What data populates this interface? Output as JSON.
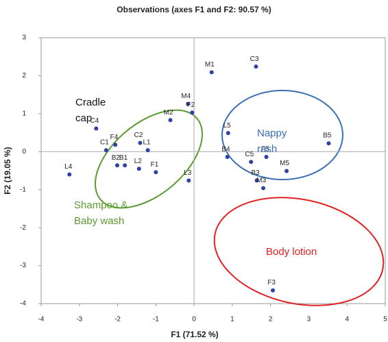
{
  "chart_data": {
    "type": "scatter",
    "title": "Observations (axes F1 and F2: 90.57 %)",
    "x_label": "F1 (71.52 %)",
    "y_label": "F2 (19.05 %)",
    "xlim": [
      -4,
      5
    ],
    "ylim": [
      -4,
      3
    ],
    "xticks": [
      -4,
      -3,
      -2,
      -1,
      0,
      1,
      2,
      3,
      4,
      5
    ],
    "yticks": [
      -4,
      -3,
      -2,
      -1,
      0,
      1,
      2,
      3
    ],
    "color": "#2e3fa8",
    "labels": [
      "M1",
      "C3",
      "M4",
      "F2",
      "M2",
      "L5",
      "B5",
      "C4",
      "F4",
      "C1",
      "C2",
      "L1",
      "B2",
      "B1",
      "L2",
      "F1",
      "L4",
      "L3",
      "B4",
      "C5",
      "F5",
      "M5",
      "B3",
      "M3",
      "F3"
    ],
    "x": [
      0.46,
      1.62,
      -0.16,
      -0.05,
      -0.62,
      0.89,
      3.52,
      -2.56,
      -2.06,
      -2.3,
      -1.41,
      -1.21,
      -2.01,
      -1.81,
      -1.44,
      -1.0,
      -3.26,
      -0.14,
      0.87,
      1.49,
      1.89,
      2.42,
      1.64,
      1.81,
      2.06
    ],
    "values": [
      2.09,
      2.24,
      1.26,
      1.03,
      0.83,
      0.49,
      0.22,
      0.61,
      0.18,
      0.04,
      0.23,
      0.04,
      -0.36,
      -0.36,
      -0.45,
      -0.54,
      -0.6,
      -0.76,
      -0.14,
      -0.27,
      -0.14,
      -0.51,
      -0.76,
      -0.96,
      -3.65
    ],
    "annotations": [
      {
        "lines": [
          "Cradle",
          "cap"
        ],
        "color": "#111111"
      },
      {
        "lines": [
          "Nappy",
          "rash"
        ],
        "color": "#3a6fb5"
      },
      {
        "lines": [
          "Shampoo &",
          "Baby wash"
        ],
        "color": "#5a9a2e"
      },
      {
        "lines": [
          "Body lotion"
        ],
        "color": "#e02020"
      }
    ]
  }
}
